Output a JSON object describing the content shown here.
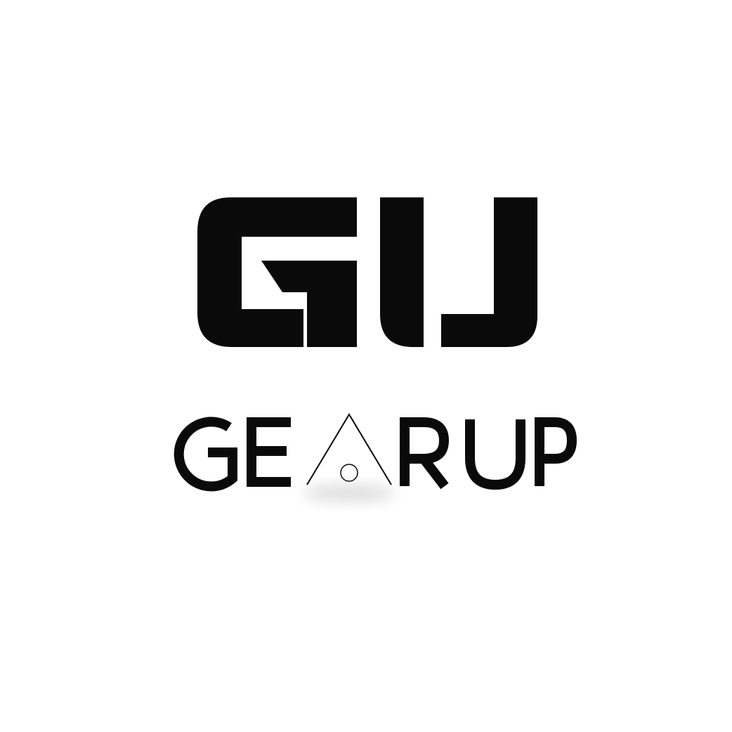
{
  "logo": {
    "monogram": "GU",
    "wordmark": "GEARUP",
    "wordmark_letters": [
      "G",
      "E",
      "A",
      "R",
      "U",
      "P"
    ],
    "colors": {
      "ink": "#0a0a0a",
      "background": "#ffffff",
      "shadow": "#d9d9d9"
    }
  }
}
